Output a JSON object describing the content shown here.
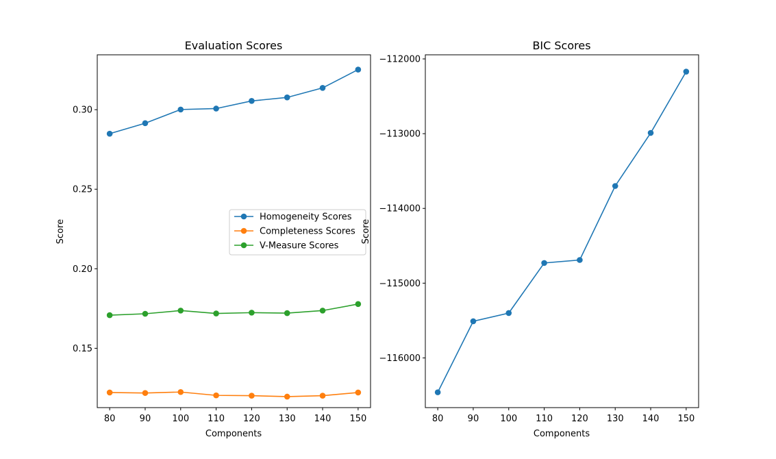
{
  "chart_data": [
    {
      "type": "line",
      "title": "Evaluation Scores",
      "xlabel": "Components",
      "ylabel": "Score",
      "x": [
        80,
        90,
        100,
        110,
        120,
        130,
        140,
        150
      ],
      "xticks": [
        "80",
        "90",
        "100",
        "110",
        "120",
        "130",
        "140",
        "150"
      ],
      "xlim": [
        76.5,
        153.5
      ],
      "yticks": [
        "0.15",
        "0.20",
        "0.25",
        "0.30"
      ],
      "ytick_values": [
        0.15,
        0.2,
        0.25,
        0.3
      ],
      "ylim": [
        0.1127,
        0.3345
      ],
      "grid": false,
      "legend_position": "center-right",
      "series": [
        {
          "name": "Homogeneity Scores",
          "color": "#1f77b4",
          "values": [
            0.2849,
            0.2915,
            0.3001,
            0.3007,
            0.3055,
            0.3077,
            0.3137,
            0.3252
          ]
        },
        {
          "name": "Completeness Scores",
          "color": "#ff7f0e",
          "values": [
            0.1222,
            0.1219,
            0.1225,
            0.1204,
            0.1202,
            0.1196,
            0.1202,
            0.1222
          ]
        },
        {
          "name": "V-Measure Scores",
          "color": "#2ca02c",
          "values": [
            0.1708,
            0.1717,
            0.1737,
            0.1719,
            0.1724,
            0.1721,
            0.1737,
            0.1778
          ]
        }
      ]
    },
    {
      "type": "line",
      "title": "BIC Scores",
      "xlabel": "Components",
      "ylabel": "Score",
      "x": [
        80,
        90,
        100,
        110,
        120,
        130,
        140,
        150
      ],
      "xticks": [
        "80",
        "90",
        "100",
        "110",
        "120",
        "130",
        "140",
        "150"
      ],
      "xlim": [
        76.5,
        153.5
      ],
      "yticks": [
        "−116000",
        "−115000",
        "−114000",
        "−113000",
        "−112000"
      ],
      "ytick_values": [
        -116000,
        -115000,
        -114000,
        -113000,
        -112000
      ],
      "ylim": [
        -116665,
        -111945
      ],
      "grid": false,
      "series": [
        {
          "color": "#1f77b4",
          "values": [
            -116460,
            -115510,
            -115400,
            -114730,
            -114690,
            -113700,
            -112990,
            -112170
          ]
        }
      ]
    }
  ]
}
